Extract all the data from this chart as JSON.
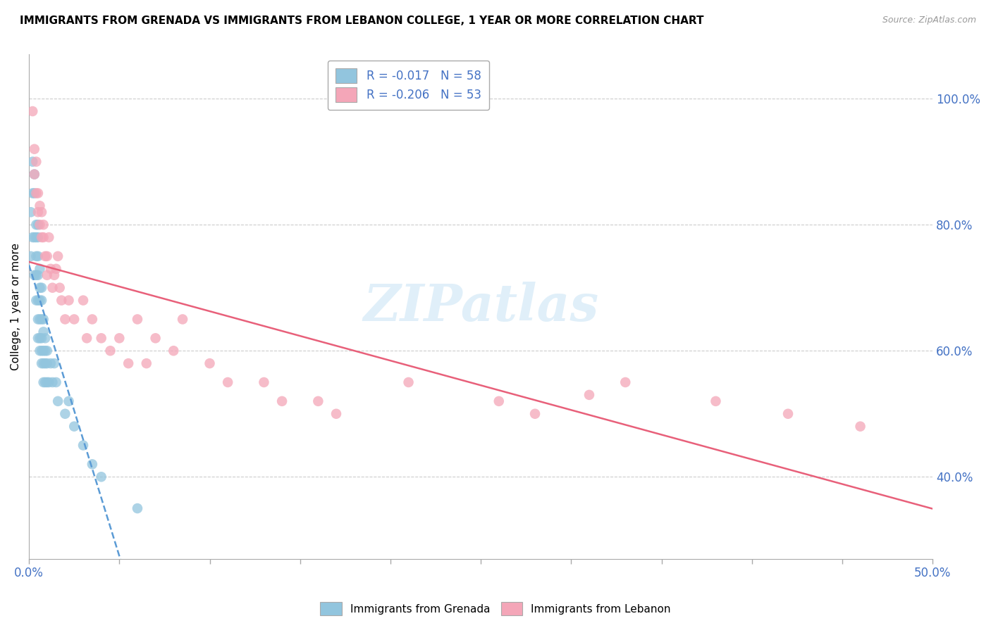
{
  "title": "IMMIGRANTS FROM GRENADA VS IMMIGRANTS FROM LEBANON COLLEGE, 1 YEAR OR MORE CORRELATION CHART",
  "source": "Source: ZipAtlas.com",
  "ylabel": "College, 1 year or more",
  "right_yticks": [
    "40.0%",
    "60.0%",
    "80.0%",
    "100.0%"
  ],
  "right_ytick_vals": [
    0.4,
    0.6,
    0.8,
    1.0
  ],
  "xlim": [
    0.0,
    0.5
  ],
  "ylim": [
    0.27,
    1.07
  ],
  "grenada_R": -0.017,
  "grenada_N": 58,
  "lebanon_R": -0.206,
  "lebanon_N": 53,
  "grenada_color": "#92c5de",
  "lebanon_color": "#f4a6b8",
  "grenada_line_color": "#5b9bd5",
  "lebanon_line_color": "#e8607a",
  "watermark": "ZIPatlas",
  "grenada_x": [
    0.001,
    0.001,
    0.002,
    0.002,
    0.002,
    0.003,
    0.003,
    0.003,
    0.003,
    0.004,
    0.004,
    0.004,
    0.004,
    0.004,
    0.005,
    0.005,
    0.005,
    0.005,
    0.005,
    0.005,
    0.005,
    0.006,
    0.006,
    0.006,
    0.006,
    0.006,
    0.006,
    0.007,
    0.007,
    0.007,
    0.007,
    0.007,
    0.007,
    0.008,
    0.008,
    0.008,
    0.008,
    0.008,
    0.009,
    0.009,
    0.009,
    0.009,
    0.01,
    0.01,
    0.01,
    0.011,
    0.012,
    0.013,
    0.014,
    0.015,
    0.016,
    0.02,
    0.022,
    0.025,
    0.03,
    0.035,
    0.04,
    0.06
  ],
  "grenada_y": [
    0.82,
    0.75,
    0.9,
    0.85,
    0.78,
    0.72,
    0.78,
    0.85,
    0.88,
    0.68,
    0.72,
    0.75,
    0.78,
    0.8,
    0.62,
    0.65,
    0.68,
    0.72,
    0.75,
    0.78,
    0.8,
    0.6,
    0.62,
    0.65,
    0.68,
    0.7,
    0.73,
    0.58,
    0.6,
    0.62,
    0.65,
    0.68,
    0.7,
    0.55,
    0.58,
    0.6,
    0.63,
    0.65,
    0.55,
    0.58,
    0.6,
    0.62,
    0.55,
    0.58,
    0.6,
    0.55,
    0.58,
    0.55,
    0.58,
    0.55,
    0.52,
    0.5,
    0.52,
    0.48,
    0.45,
    0.42,
    0.4,
    0.35
  ],
  "lebanon_x": [
    0.002,
    0.003,
    0.003,
    0.004,
    0.004,
    0.005,
    0.005,
    0.006,
    0.006,
    0.007,
    0.007,
    0.008,
    0.008,
    0.009,
    0.01,
    0.01,
    0.011,
    0.012,
    0.013,
    0.014,
    0.015,
    0.016,
    0.017,
    0.018,
    0.02,
    0.022,
    0.025,
    0.03,
    0.032,
    0.035,
    0.04,
    0.045,
    0.05,
    0.055,
    0.06,
    0.065,
    0.07,
    0.08,
    0.085,
    0.1,
    0.11,
    0.13,
    0.14,
    0.16,
    0.17,
    0.21,
    0.26,
    0.28,
    0.31,
    0.33,
    0.38,
    0.42,
    0.46
  ],
  "lebanon_y": [
    0.98,
    0.92,
    0.88,
    0.85,
    0.9,
    0.82,
    0.85,
    0.8,
    0.83,
    0.78,
    0.82,
    0.78,
    0.8,
    0.75,
    0.72,
    0.75,
    0.78,
    0.73,
    0.7,
    0.72,
    0.73,
    0.75,
    0.7,
    0.68,
    0.65,
    0.68,
    0.65,
    0.68,
    0.62,
    0.65,
    0.62,
    0.6,
    0.62,
    0.58,
    0.65,
    0.58,
    0.62,
    0.6,
    0.65,
    0.58,
    0.55,
    0.55,
    0.52,
    0.52,
    0.5,
    0.55,
    0.52,
    0.5,
    0.53,
    0.55,
    0.52,
    0.5,
    0.48
  ]
}
